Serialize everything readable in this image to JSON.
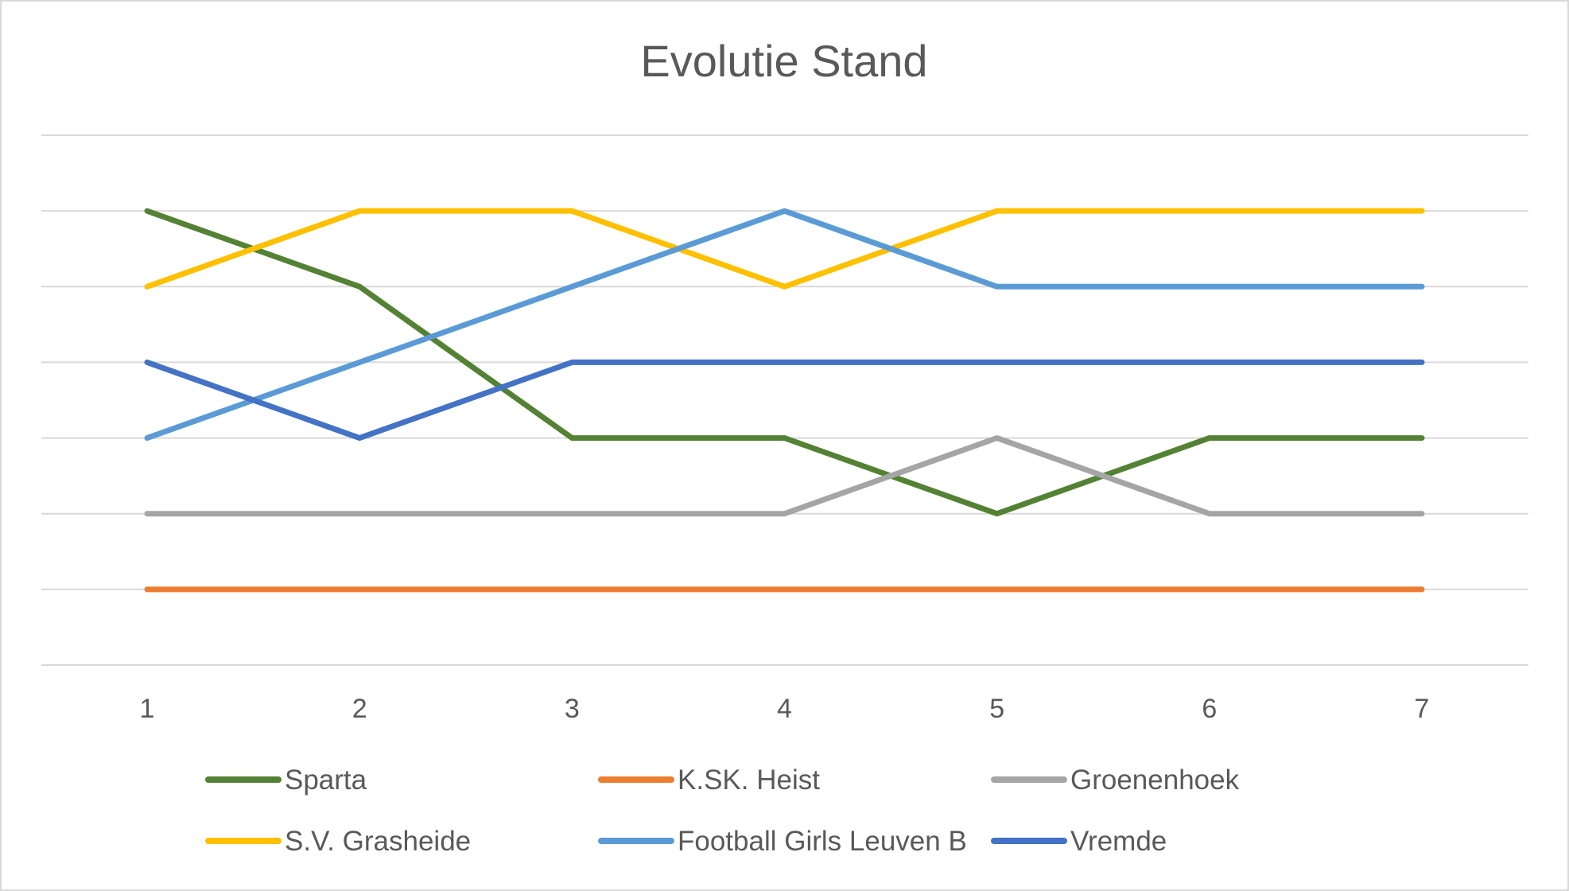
{
  "chart_data": {
    "type": "line",
    "title": "Evolutie  Stand",
    "xlabel": "",
    "ylabel": "",
    "x": [
      "1",
      "2",
      "3",
      "4",
      "5",
      "6",
      "7"
    ],
    "ylim": [
      0,
      7
    ],
    "y_inverted": true,
    "y_tick_labels_shown": false,
    "grid": "horizontal",
    "legend_position": "bottom",
    "series": [
      {
        "name": "Sparta",
        "color": "#548235",
        "values": [
          1,
          2,
          4,
          4,
          5,
          4,
          4
        ]
      },
      {
        "name": "K.SK. Heist",
        "color": "#ed7d31",
        "values": [
          6,
          6,
          6,
          6,
          6,
          6,
          6
        ]
      },
      {
        "name": "Groenenhoek",
        "color": "#a5a5a5",
        "values": [
          5,
          5,
          5,
          5,
          4,
          5,
          5
        ]
      },
      {
        "name": "S.V. Grasheide",
        "color": "#ffc000",
        "values": [
          2,
          1,
          1,
          2,
          1,
          1,
          1
        ]
      },
      {
        "name": "Football Girls Leuven B",
        "color": "#5b9bd5",
        "values": [
          4,
          3,
          2,
          1,
          2,
          2,
          2
        ]
      },
      {
        "name": "Vremde",
        "color": "#4472c4",
        "values": [
          3,
          4,
          3,
          3,
          3,
          3,
          3
        ]
      }
    ]
  }
}
